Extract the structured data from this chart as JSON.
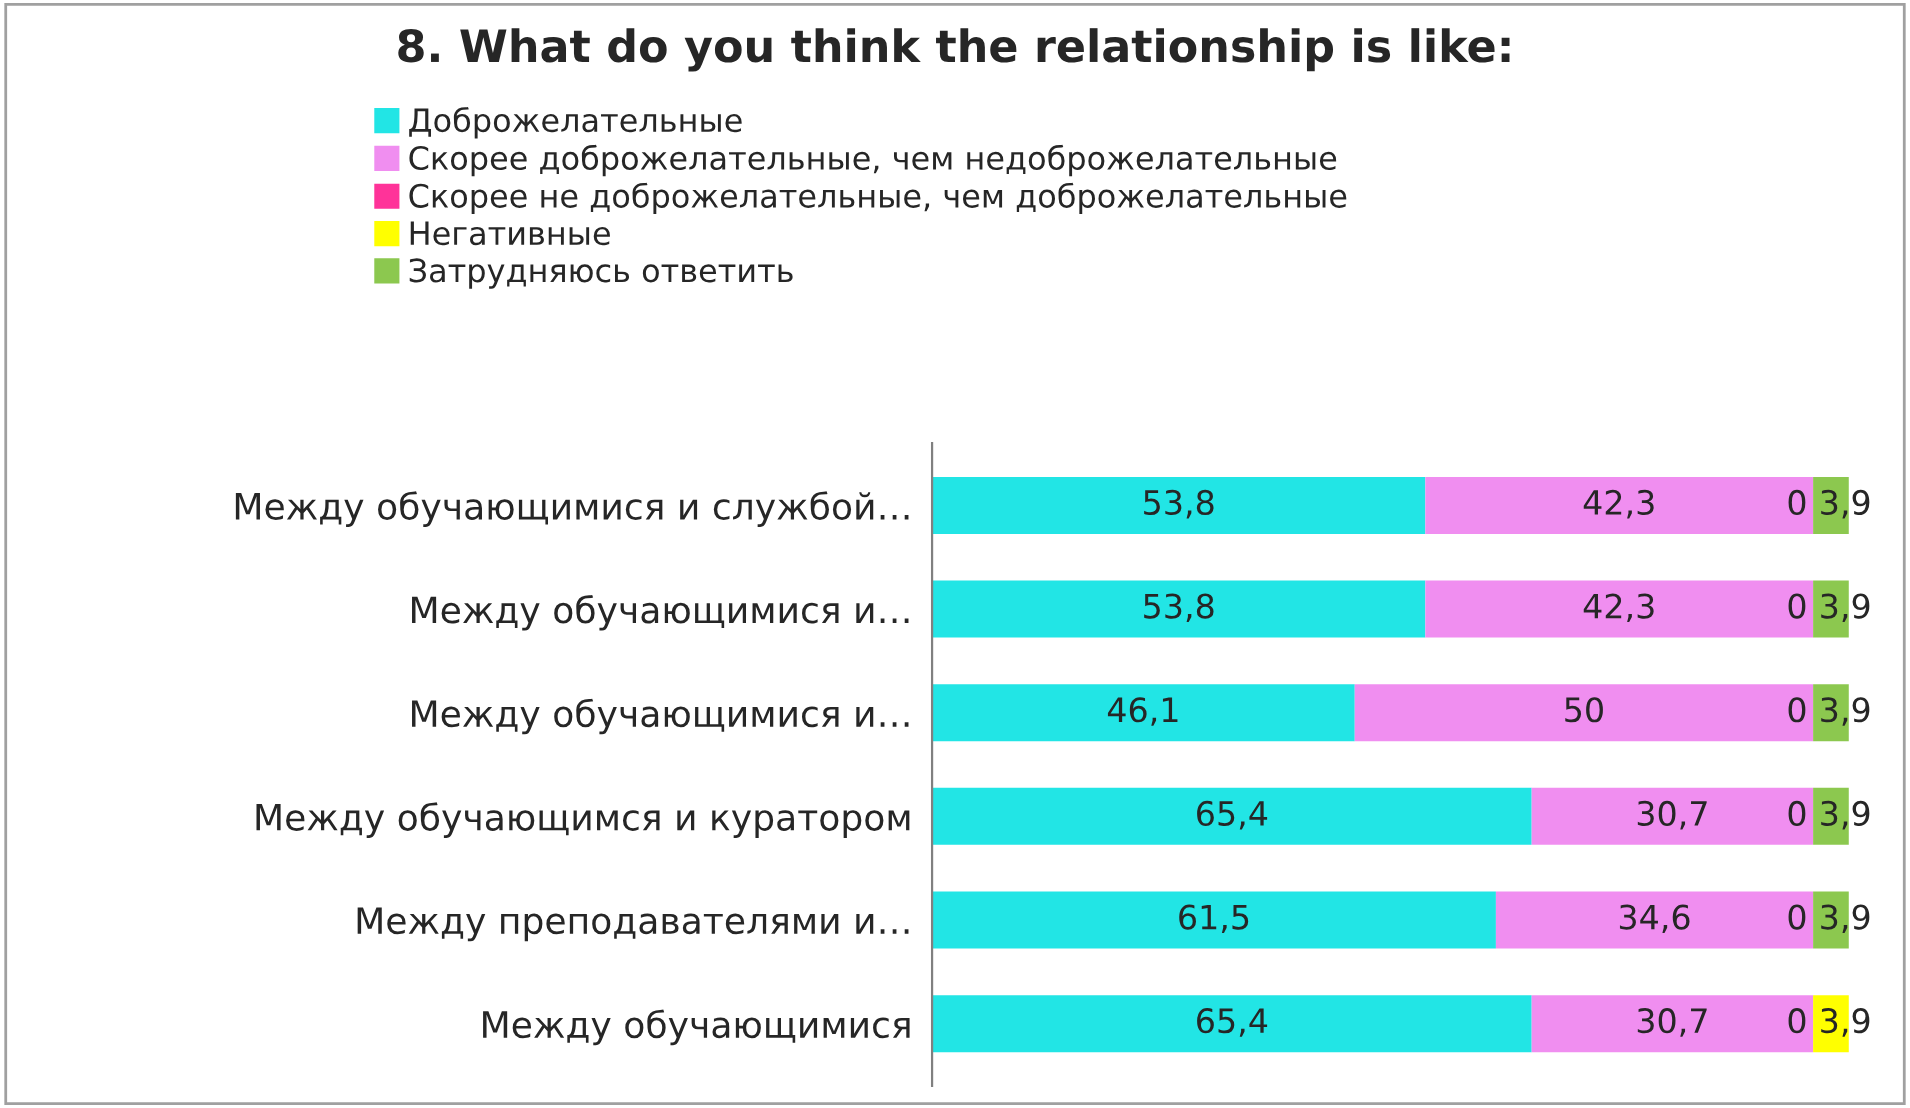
{
  "chart_data": {
    "type": "bar",
    "orientation": "horizontal",
    "stacked": true,
    "title": "8. What do you think the relationship is like:",
    "categories": [
      "Между обучающимися и службой…",
      "Между обучающимися и…",
      "Между обучающимися и…",
      "Между обучающимся и куратором",
      "Между преподавателями и…",
      "Между обучающимися"
    ],
    "series": [
      {
        "name": "Доброжелательные",
        "color": "#22e5e5",
        "values": [
          53.8,
          53.8,
          46.1,
          65.4,
          61.5,
          65.4
        ],
        "value_labels": [
          "53,8",
          "53,8",
          "46,1",
          "65,4",
          "61,5",
          "65,4"
        ]
      },
      {
        "name": "Скорее доброжелательные, чем недоброжелательные",
        "color": "#f08ef0",
        "values": [
          42.3,
          42.3,
          50,
          30.7,
          34.6,
          30.7
        ],
        "value_labels": [
          "42,3",
          "42,3",
          "50",
          "30,7",
          "34,6",
          "30,7"
        ]
      },
      {
        "name": "Скорее не доброжелательные, чем доброжелательные",
        "color": "#ff3399",
        "values": [
          0,
          0,
          0,
          0,
          0,
          0
        ],
        "value_labels": [
          "0",
          "0",
          "0",
          "0",
          "0",
          "0"
        ]
      },
      {
        "name": "Негативные",
        "color": "#ffff00",
        "values": [
          0,
          0,
          0,
          0,
          0,
          3.9
        ],
        "value_labels": [
          null,
          null,
          null,
          null,
          null,
          "3,9"
        ]
      },
      {
        "name": "Затрудняюсь ответить",
        "color": "#8cc84f",
        "values": [
          3.9,
          3.9,
          3.9,
          3.9,
          3.9,
          0
        ],
        "value_labels": [
          "3,9",
          "3,9",
          "3,9",
          "3,9",
          "3,9",
          null
        ]
      }
    ],
    "xlim": [
      0,
      100
    ],
    "tick_labels": "y",
    "legend": "top",
    "grid": false
  }
}
